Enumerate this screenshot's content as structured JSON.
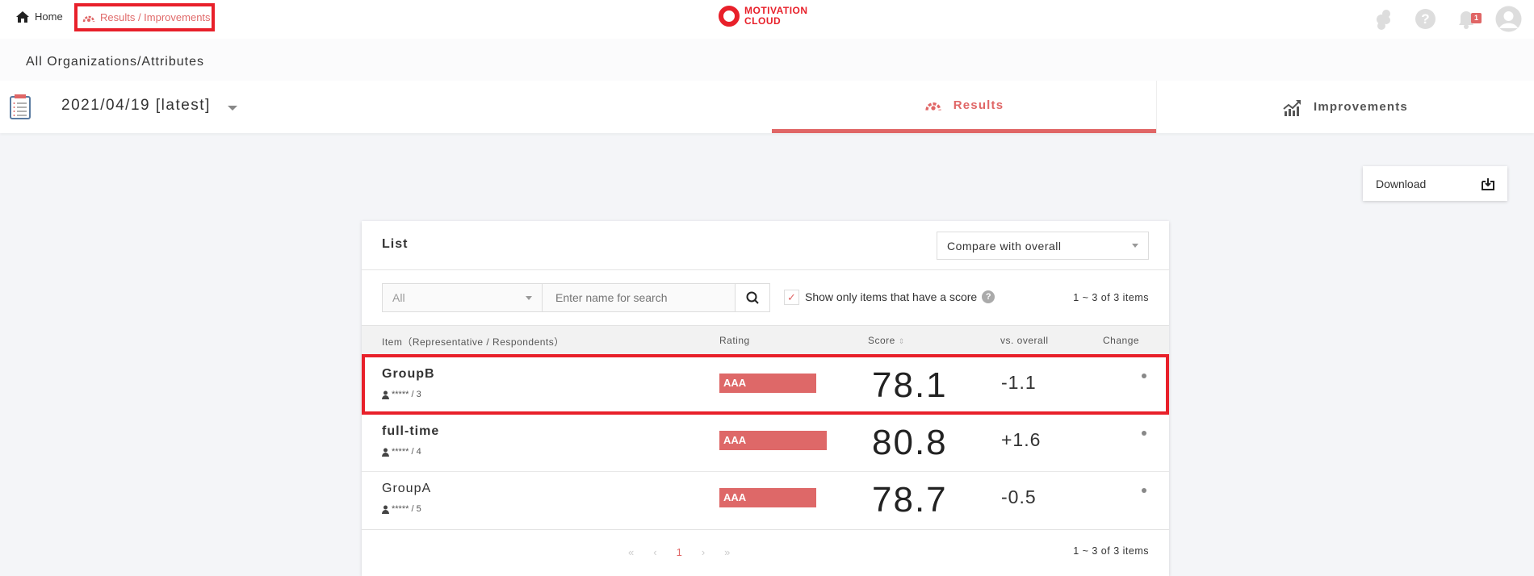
{
  "header": {
    "home_label": "Home",
    "breadcrumb_label": "Results / Improvements",
    "logo_line1": "MOTIVATION",
    "logo_line2": "CLOUD",
    "notification_count": "1",
    "accent": "#e06666",
    "highlight": "#e8202a"
  },
  "org_title": "All Organizations/Attributes",
  "survey_date": "2021/04/19 [latest]",
  "tabs": [
    {
      "label": "Results",
      "active": true,
      "icon": "gauge-icon"
    },
    {
      "label": "Improvements",
      "active": false,
      "icon": "chart-trend-icon"
    }
  ],
  "download_label": "Download",
  "list": {
    "title": "List",
    "compare_value": "Compare with overall",
    "filter_value": "All",
    "search_placeholder": "Enter name for search",
    "checkbox_label": "Show only items that have a score",
    "checkbox_checked": true,
    "count_top": "1 ~ 3 of 3 items",
    "count_bottom": "1 ~ 3 of 3 items",
    "columns": [
      "Item（Representative / Respondents）",
      "Rating",
      "Score",
      "vs. overall",
      "Change"
    ],
    "rows": [
      {
        "name": "GroupB",
        "respondents": "***** / 3",
        "rating": "AAA",
        "rating_fill": 75,
        "score": "78.1",
        "vs": "-1.1",
        "bold": true
      },
      {
        "name": "full-time",
        "respondents": "***** / 4",
        "rating": "AAA",
        "rating_fill": 83,
        "score": "80.8",
        "vs": "+1.6",
        "bold": true
      },
      {
        "name": "GroupA",
        "respondents": "***** / 5",
        "rating": "AAA",
        "rating_fill": 75,
        "score": "78.7",
        "vs": "-0.5",
        "bold": false
      }
    ],
    "pager": {
      "first": "«",
      "prev": "‹",
      "current": "1",
      "next": "›",
      "last": "»"
    }
  }
}
